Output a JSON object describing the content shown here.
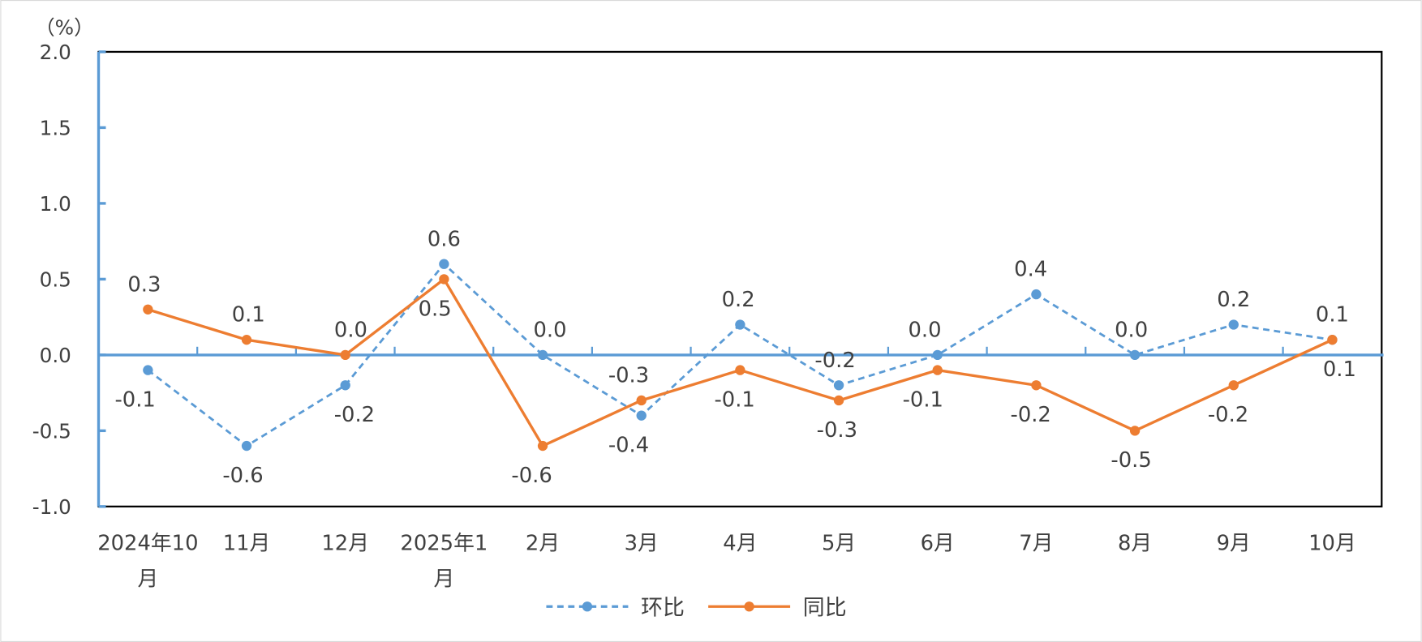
{
  "chart_data": {
    "type": "line",
    "unit_label": "（%）",
    "categories": [
      "2024年10月",
      "11月",
      "12月",
      "2025年1月",
      "2月",
      "3月",
      "4月",
      "5月",
      "6月",
      "7月",
      "8月",
      "9月",
      "10月"
    ],
    "category_lines": [
      [
        "2024年10",
        "月"
      ],
      [
        "11月"
      ],
      [
        "12月"
      ],
      [
        "2025年1",
        "月"
      ],
      [
        "2月"
      ],
      [
        "3月"
      ],
      [
        "4月"
      ],
      [
        "5月"
      ],
      [
        "6月"
      ],
      [
        "7月"
      ],
      [
        "8月"
      ],
      [
        "9月"
      ],
      [
        "10月"
      ]
    ],
    "ylim": [
      -1.0,
      2.0
    ],
    "yticks": [
      "2.0",
      "1.5",
      "1.0",
      "0.5",
      "0.0",
      "-0.5",
      "-1.0"
    ],
    "ytick_values": [
      2.0,
      1.5,
      1.0,
      0.5,
      0.0,
      -0.5,
      -1.0
    ],
    "series": [
      {
        "name": "环比",
        "color": "#5B9BD5",
        "dashed": true,
        "values": [
          -0.1,
          -0.6,
          -0.2,
          0.6,
          0.0,
          -0.4,
          0.2,
          -0.2,
          0.0,
          0.4,
          0.0,
          0.2,
          0.1
        ],
        "labels": [
          "-0.1",
          "-0.6",
          "-0.2",
          "0.6",
          "0.0",
          "-0.4",
          "0.2",
          "-0.2",
          "0.0",
          "0.4",
          "0.0",
          "0.2",
          "0.1"
        ]
      },
      {
        "name": "同比",
        "color": "#ED7D31",
        "dashed": false,
        "values": [
          0.3,
          0.1,
          0.0,
          0.5,
          -0.6,
          -0.3,
          -0.1,
          -0.3,
          -0.1,
          -0.2,
          -0.5,
          -0.2,
          0.1
        ],
        "labels": [
          "0.3",
          "0.1",
          "0.0",
          "0.5",
          "-0.6",
          "-0.3",
          "-0.1",
          "-0.3",
          "-0.1",
          "-0.2",
          "-0.5",
          "-0.2",
          "0.1"
        ]
      }
    ],
    "legend": {
      "position": "bottom",
      "entries": [
        "环比",
        "同比"
      ]
    },
    "grid": false
  }
}
